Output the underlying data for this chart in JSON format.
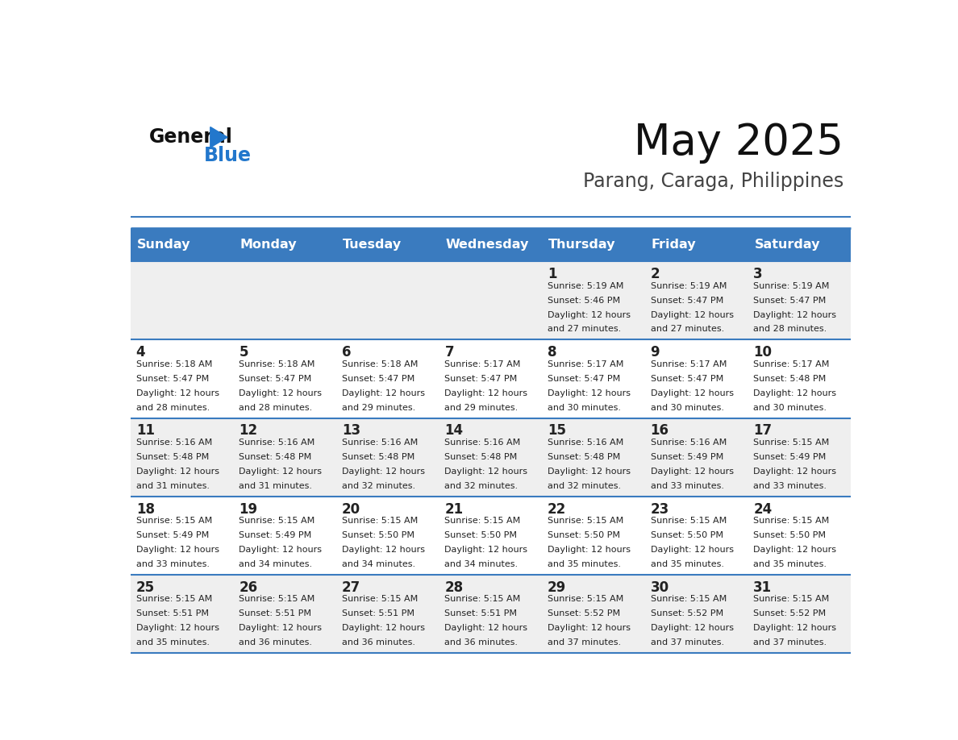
{
  "title": "May 2025",
  "subtitle": "Parang, Caraga, Philippines",
  "header_bg_color": "#3a7bbf",
  "header_text_color": "#ffffff",
  "day_names": [
    "Sunday",
    "Monday",
    "Tuesday",
    "Wednesday",
    "Thursday",
    "Friday",
    "Saturday"
  ],
  "cell_bg_even": "#efefef",
  "cell_bg_odd": "#ffffff",
  "cell_border_color": "#3a7bbf",
  "text_color": "#222222",
  "logo_color": "#2277cc",
  "calendar": [
    [
      null,
      null,
      null,
      null,
      {
        "day": 1,
        "sunrise": "5:19 AM",
        "sunset": "5:46 PM",
        "daylight": "12 hours and 27 minutes"
      },
      {
        "day": 2,
        "sunrise": "5:19 AM",
        "sunset": "5:47 PM",
        "daylight": "12 hours and 27 minutes"
      },
      {
        "day": 3,
        "sunrise": "5:19 AM",
        "sunset": "5:47 PM",
        "daylight": "12 hours and 28 minutes"
      }
    ],
    [
      {
        "day": 4,
        "sunrise": "5:18 AM",
        "sunset": "5:47 PM",
        "daylight": "12 hours and 28 minutes"
      },
      {
        "day": 5,
        "sunrise": "5:18 AM",
        "sunset": "5:47 PM",
        "daylight": "12 hours and 28 minutes"
      },
      {
        "day": 6,
        "sunrise": "5:18 AM",
        "sunset": "5:47 PM",
        "daylight": "12 hours and 29 minutes"
      },
      {
        "day": 7,
        "sunrise": "5:17 AM",
        "sunset": "5:47 PM",
        "daylight": "12 hours and 29 minutes"
      },
      {
        "day": 8,
        "sunrise": "5:17 AM",
        "sunset": "5:47 PM",
        "daylight": "12 hours and 30 minutes"
      },
      {
        "day": 9,
        "sunrise": "5:17 AM",
        "sunset": "5:47 PM",
        "daylight": "12 hours and 30 minutes"
      },
      {
        "day": 10,
        "sunrise": "5:17 AM",
        "sunset": "5:48 PM",
        "daylight": "12 hours and 30 minutes"
      }
    ],
    [
      {
        "day": 11,
        "sunrise": "5:16 AM",
        "sunset": "5:48 PM",
        "daylight": "12 hours and 31 minutes"
      },
      {
        "day": 12,
        "sunrise": "5:16 AM",
        "sunset": "5:48 PM",
        "daylight": "12 hours and 31 minutes"
      },
      {
        "day": 13,
        "sunrise": "5:16 AM",
        "sunset": "5:48 PM",
        "daylight": "12 hours and 32 minutes"
      },
      {
        "day": 14,
        "sunrise": "5:16 AM",
        "sunset": "5:48 PM",
        "daylight": "12 hours and 32 minutes"
      },
      {
        "day": 15,
        "sunrise": "5:16 AM",
        "sunset": "5:48 PM",
        "daylight": "12 hours and 32 minutes"
      },
      {
        "day": 16,
        "sunrise": "5:16 AM",
        "sunset": "5:49 PM",
        "daylight": "12 hours and 33 minutes"
      },
      {
        "day": 17,
        "sunrise": "5:15 AM",
        "sunset": "5:49 PM",
        "daylight": "12 hours and 33 minutes"
      }
    ],
    [
      {
        "day": 18,
        "sunrise": "5:15 AM",
        "sunset": "5:49 PM",
        "daylight": "12 hours and 33 minutes"
      },
      {
        "day": 19,
        "sunrise": "5:15 AM",
        "sunset": "5:49 PM",
        "daylight": "12 hours and 34 minutes"
      },
      {
        "day": 20,
        "sunrise": "5:15 AM",
        "sunset": "5:50 PM",
        "daylight": "12 hours and 34 minutes"
      },
      {
        "day": 21,
        "sunrise": "5:15 AM",
        "sunset": "5:50 PM",
        "daylight": "12 hours and 34 minutes"
      },
      {
        "day": 22,
        "sunrise": "5:15 AM",
        "sunset": "5:50 PM",
        "daylight": "12 hours and 35 minutes"
      },
      {
        "day": 23,
        "sunrise": "5:15 AM",
        "sunset": "5:50 PM",
        "daylight": "12 hours and 35 minutes"
      },
      {
        "day": 24,
        "sunrise": "5:15 AM",
        "sunset": "5:50 PM",
        "daylight": "12 hours and 35 minutes"
      }
    ],
    [
      {
        "day": 25,
        "sunrise": "5:15 AM",
        "sunset": "5:51 PM",
        "daylight": "12 hours and 35 minutes"
      },
      {
        "day": 26,
        "sunrise": "5:15 AM",
        "sunset": "5:51 PM",
        "daylight": "12 hours and 36 minutes"
      },
      {
        "day": 27,
        "sunrise": "5:15 AM",
        "sunset": "5:51 PM",
        "daylight": "12 hours and 36 minutes"
      },
      {
        "day": 28,
        "sunrise": "5:15 AM",
        "sunset": "5:51 PM",
        "daylight": "12 hours and 36 minutes"
      },
      {
        "day": 29,
        "sunrise": "5:15 AM",
        "sunset": "5:52 PM",
        "daylight": "12 hours and 37 minutes"
      },
      {
        "day": 30,
        "sunrise": "5:15 AM",
        "sunset": "5:52 PM",
        "daylight": "12 hours and 37 minutes"
      },
      {
        "day": 31,
        "sunrise": "5:15 AM",
        "sunset": "5:52 PM",
        "daylight": "12 hours and 37 minutes"
      }
    ]
  ]
}
